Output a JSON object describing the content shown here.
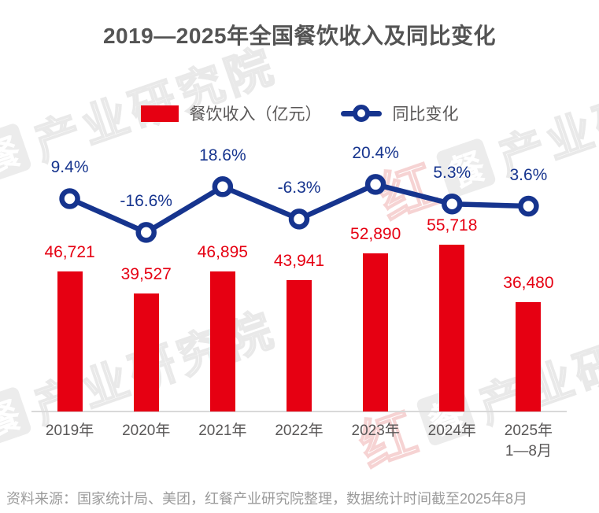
{
  "title": "2019—2025年全国餐饮收入及同比变化",
  "legend": {
    "bar_label": "餐饮收入（亿元）",
    "line_label": "同比变化"
  },
  "source_note": "资料来源：国家统计局、美团，红餐产业研究院整理，数据统计时间截至2025年8月",
  "watermark": {
    "brand": "红",
    "logo_glyph": "餐",
    "text": "产业研究院"
  },
  "colors": {
    "bar": "#e60012",
    "bar_label": "#e60012",
    "line": "#16348e",
    "line_label": "#16348e",
    "title": "#545454",
    "axis_text": "#595757",
    "source_text": "#9b9b9b",
    "axis_line": "#d9d9d9"
  },
  "chart_data": {
    "type": "bar+line",
    "categories": [
      "2019年",
      "2020年",
      "2021年",
      "2022年",
      "2023年",
      "2024年",
      "2025年\n1—8月"
    ],
    "series": [
      {
        "name": "餐饮收入（亿元）",
        "type": "bar",
        "values": [
          46721,
          39527,
          46895,
          43941,
          52890,
          55718,
          36480
        ],
        "labels": [
          "46,721",
          "39,527",
          "46,895",
          "43,941",
          "52,890",
          "55,718",
          "36,480"
        ]
      },
      {
        "name": "同比变化",
        "type": "line",
        "unit": "%",
        "values": [
          9.4,
          -16.6,
          18.6,
          -6.3,
          20.4,
          5.3,
          3.6
        ],
        "labels": [
          "9.4%",
          "-16.6%",
          "18.6%",
          "-6.3%",
          "20.4%",
          "5.3%",
          "3.6%"
        ]
      }
    ],
    "y_axis_visible": false,
    "gridlines": false,
    "legend_position": "top-center",
    "value_labels": "above points and bars"
  }
}
